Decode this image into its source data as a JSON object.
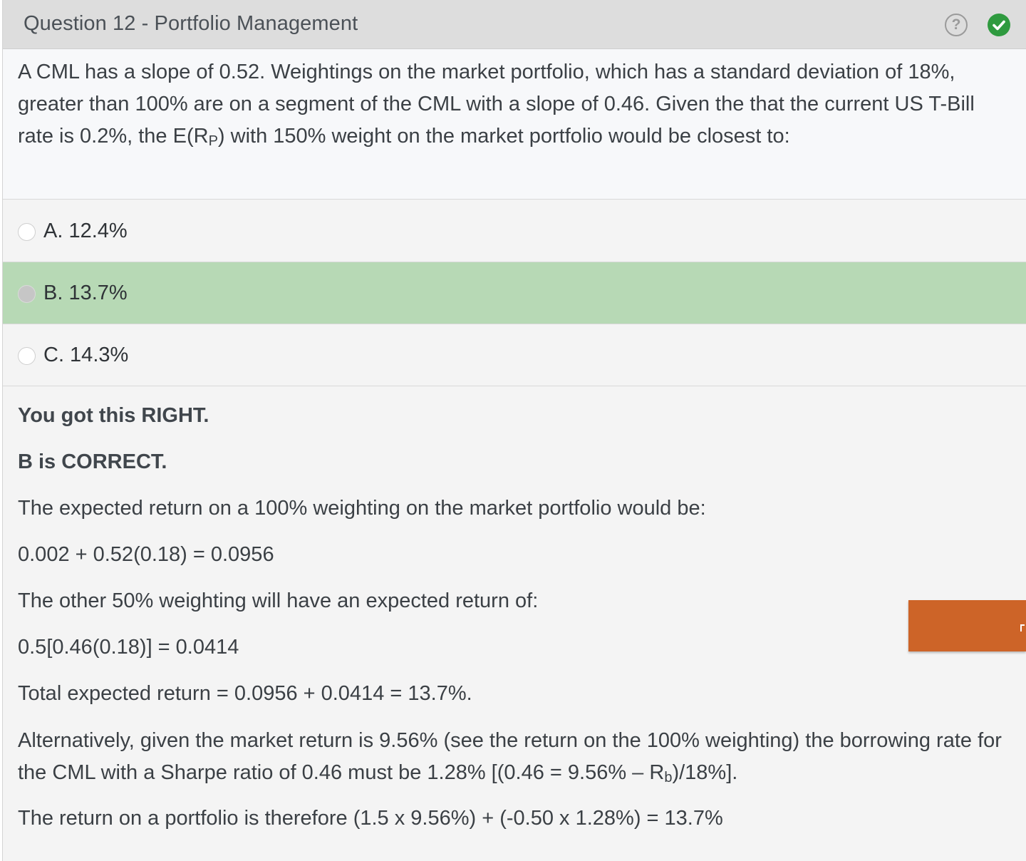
{
  "header": {
    "title": "Question 12 - Portfolio Management",
    "help_icon": "question-circle-icon",
    "status_icon": "check-circle-icon",
    "help_glyph": "?",
    "status_color": "#2f9a3f"
  },
  "question": {
    "text_before_sub": "A CML has a slope of 0.52.  Weightings on the market portfolio, which has a standard deviation of 18%, greater than 100% are on a segment of the CML with a slope of 0.46. Given the that the current US T-Bill rate is 0.2%, the E(R",
    "subscript": "P",
    "text_after_sub": ") with 150% weight on the market portfolio would be closest to:"
  },
  "options": [
    {
      "label": "A. 12.4%",
      "correct": false
    },
    {
      "label": "B. 13.7%",
      "correct": true
    },
    {
      "label": "C. 14.3%",
      "correct": false
    }
  ],
  "feedback": {
    "result": "You got this RIGHT.",
    "correct_answer": "B is CORRECT.",
    "line1": "The expected return on a 100% weighting on the market portfolio would be:",
    "line2": "0.002 + 0.52(0.18) = 0.0956",
    "line3": "The other 50% weighting will have an expected return of:",
    "line4": "0.5[0.46(0.18)] = 0.0414",
    "line5": "Total expected return = 0.0956 + 0.0414 = 13.7%.",
    "line6_before_sub": "Alternatively, given the market return is 9.56% (see the return on the 100% weighting) the borrowing rate for the CML with a Sharpe ratio of 0.46 must be 1.28% [(0.46 = 9.56% – R",
    "line6_sub": "b",
    "line6_after_sub": ")/18%].",
    "line7": "The return on a portfolio is therefore (1.5 x 9.56%) + (-0.50 x 1.28%) = 13.7%"
  },
  "colors": {
    "correct_highlight": "#b7d9b5",
    "header_bg": "#dddddd",
    "accent_tab": "#cd6428"
  }
}
